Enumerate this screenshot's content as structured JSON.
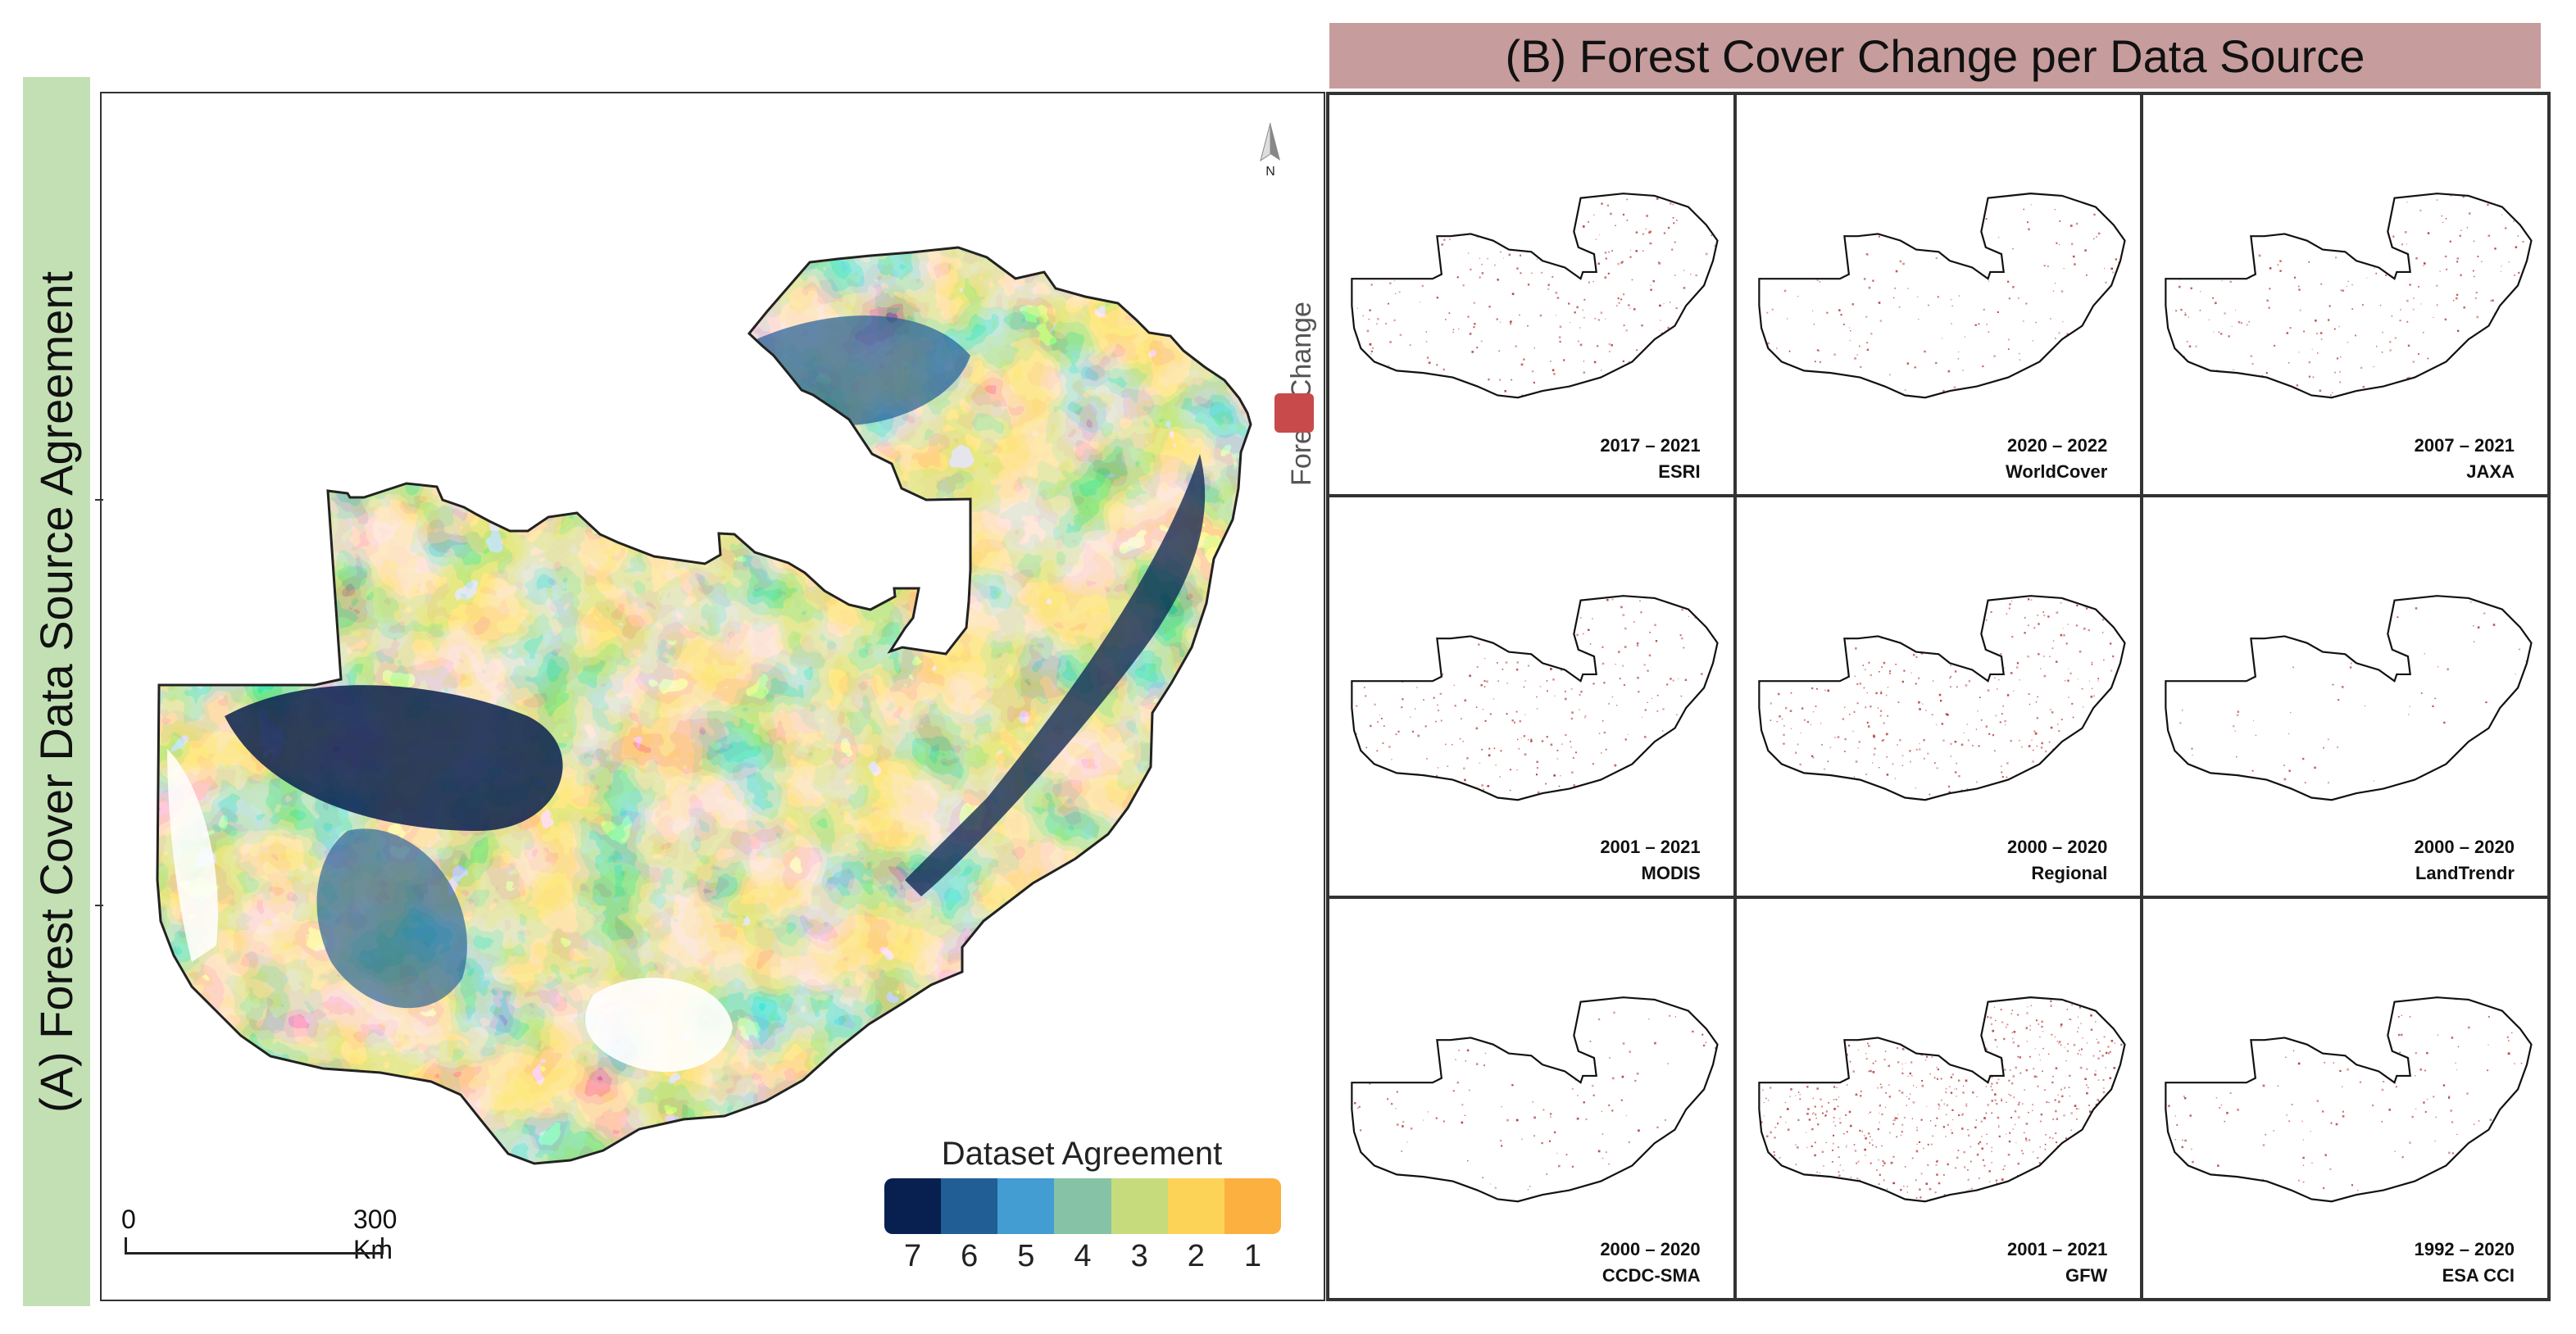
{
  "panel_a": {
    "title": "(A) Forest Cover Data Source Agreement",
    "legend_title": "Dataset Agreement",
    "agreement_levels": [
      {
        "label": "7",
        "color": "#08204f"
      },
      {
        "label": "6",
        "color": "#205e95"
      },
      {
        "label": "5",
        "color": "#439cd2"
      },
      {
        "label": "4",
        "color": "#86c3a6"
      },
      {
        "label": "3",
        "color": "#c6dc7c"
      },
      {
        "label": "2",
        "color": "#fdd357"
      },
      {
        "label": "1",
        "color": "#fbb040"
      }
    ],
    "scale_bar": {
      "start_label": "0",
      "end_label": "300 Km"
    },
    "north_label": "N",
    "forest_change_legend": {
      "label": "Forest Change",
      "color": "#c84a4a"
    }
  },
  "panel_b": {
    "title": "(B) Forest Cover Change per Data Source",
    "sources": [
      {
        "period": "2017 – 2021",
        "name": "ESRI",
        "density": 0.35
      },
      {
        "period": "2020 – 2022",
        "name": "WorldCover",
        "density": 0.2
      },
      {
        "period": "2007 – 2021",
        "name": "JAXA",
        "density": 0.3
      },
      {
        "period": "2001 – 2021",
        "name": "MODIS",
        "density": 0.35
      },
      {
        "period": "2000 – 2020",
        "name": "Regional",
        "density": 0.45
      },
      {
        "period": "2000 – 2020",
        "name": "LandTrendr",
        "density": 0.05
      },
      {
        "period": "2000 – 2020",
        "name": "CCDC-SMA",
        "density": 0.15
      },
      {
        "period": "2001 – 2021",
        "name": "GFW",
        "density": 1.0
      },
      {
        "period": "1992 – 2020",
        "name": "ESA CCI",
        "density": 0.15
      }
    ]
  }
}
